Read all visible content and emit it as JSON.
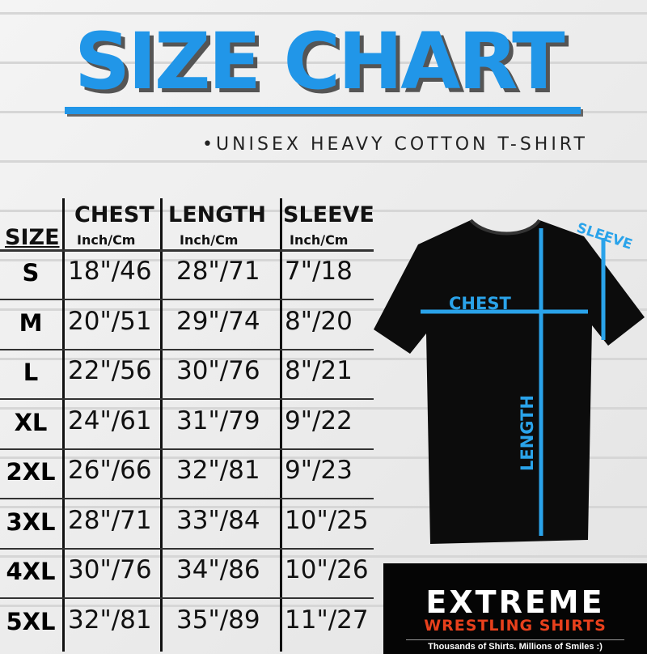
{
  "title": "SIZE CHART",
  "subtitle": "•UNISEX HEAVY COTTON T-SHIRT",
  "table": {
    "size_header": "SIZE",
    "columns": [
      {
        "label": "CHEST",
        "unit": "Inch/Cm"
      },
      {
        "label": "LENGTH",
        "unit": "Inch/Cm"
      },
      {
        "label": "SLEEVE",
        "unit": "Inch/Cm"
      }
    ],
    "rows": [
      {
        "size": "S",
        "chest": "18\"/46",
        "length": "28\"/71",
        "sleeve": "7\"/18"
      },
      {
        "size": "M",
        "chest": "20\"/51",
        "length": "29\"/74",
        "sleeve": "8\"/20"
      },
      {
        "size": "L",
        "chest": "22\"/56",
        "length": "30\"/76",
        "sleeve": "8\"/21"
      },
      {
        "size": "XL",
        "chest": "24\"/61",
        "length": "31\"/79",
        "sleeve": "9\"/22"
      },
      {
        "size": "2XL",
        "chest": "26\"/66",
        "length": "32\"/81",
        "sleeve": "9\"/23"
      },
      {
        "size": "3XL",
        "chest": "28\"/71",
        "length": "33\"/84",
        "sleeve": "10\"/25"
      },
      {
        "size": "4XL",
        "chest": "30\"/76",
        "length": "34\"/86",
        "sleeve": "10\"/26"
      },
      {
        "size": "5XL",
        "chest": "32\"/81",
        "length": "35\"/89",
        "sleeve": "11\"/27"
      }
    ]
  },
  "diagram": {
    "chest": "CHEST",
    "length": "LENGTH",
    "sleeve": "SLEEVE"
  },
  "logo": {
    "brand": "EXTREME",
    "sub": "WRESTLING SHIRTS",
    "tagline": "Thousands of Shirts. Millions of Smiles :)"
  },
  "colors": {
    "accent": "#2196e8",
    "logo_red": "#e8401c"
  }
}
